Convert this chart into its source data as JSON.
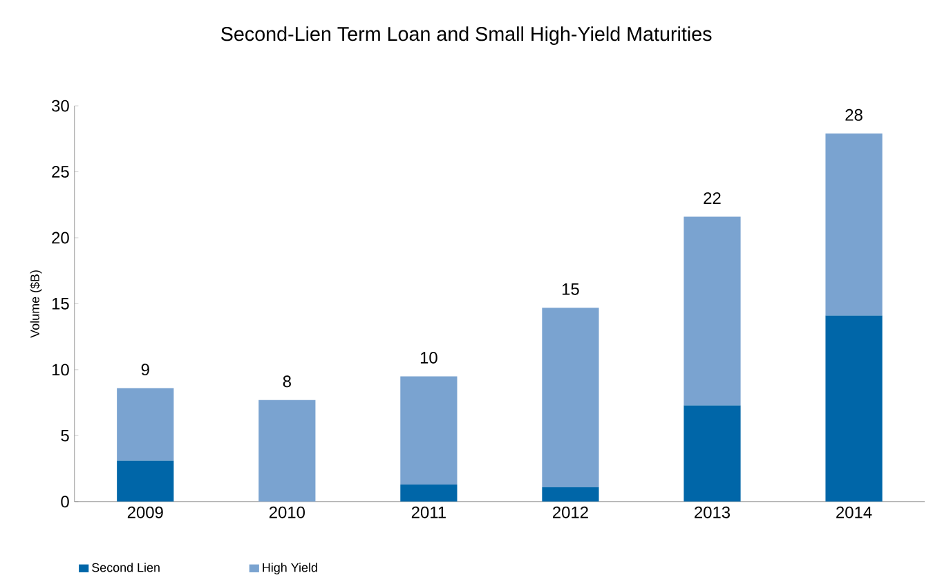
{
  "chart_data": {
    "type": "bar",
    "title": "Second-Lien Term Loan and Small High-Yield Maturities",
    "ylabel": "Volume ($B)",
    "categories": [
      "2009",
      "2010",
      "2011",
      "2012",
      "2013",
      "2014"
    ],
    "stacked": true,
    "series": [
      {
        "name": "Second Lien",
        "color": "#0066a8",
        "values": [
          3.1,
          0,
          1.3,
          1.1,
          7.3,
          14.1
        ]
      },
      {
        "name": "High Yield",
        "color": "#7aa3d0",
        "values": [
          5.5,
          7.7,
          8.2,
          13.6,
          14.3,
          13.8
        ]
      }
    ],
    "totals": [
      "9",
      "8",
      "10",
      "15",
      "22",
      "28"
    ],
    "ylim": [
      0,
      30
    ],
    "yticks": [
      0,
      5,
      10,
      15,
      20,
      25,
      30
    ],
    "legend": "bottom"
  }
}
